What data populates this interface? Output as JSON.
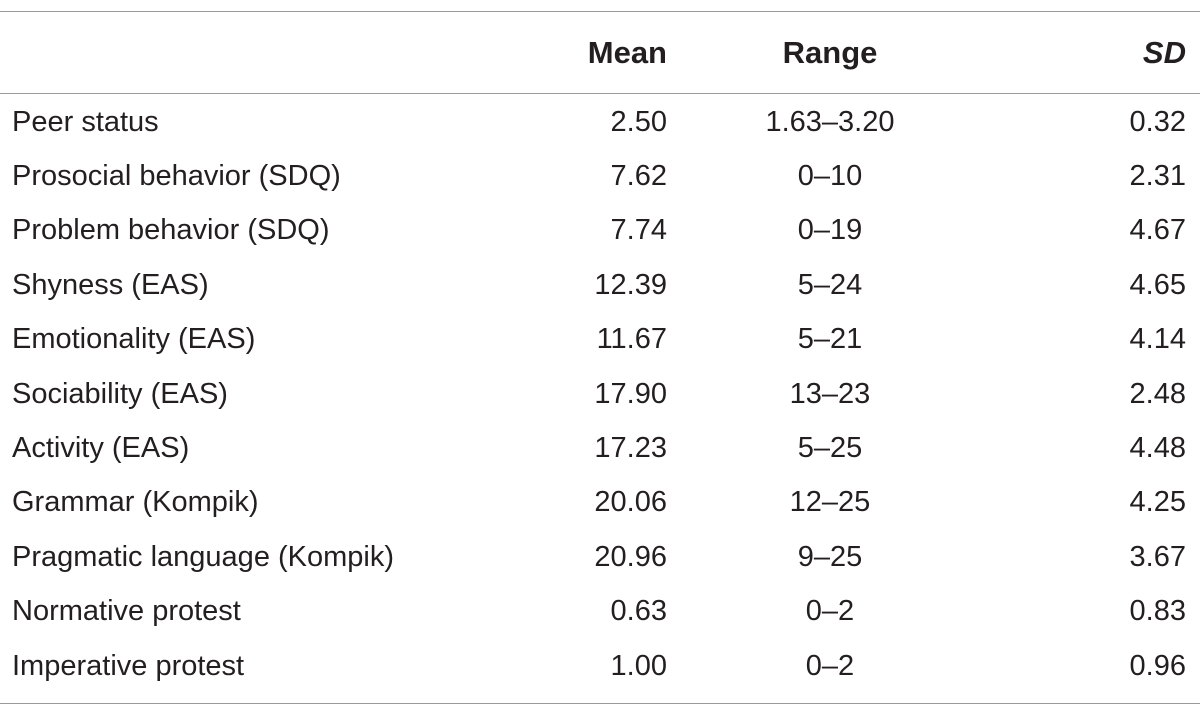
{
  "table": {
    "headers": {
      "label": "",
      "mean": "Mean",
      "range": "Range",
      "sd": "SD"
    },
    "rows": [
      {
        "label": "Peer status",
        "mean": "2.50",
        "range": "1.63–3.20",
        "sd": "0.32"
      },
      {
        "label": "Prosocial behavior (SDQ)",
        "mean": "7.62",
        "range": "0–10",
        "sd": "2.31"
      },
      {
        "label": "Problem behavior (SDQ)",
        "mean": "7.74",
        "range": "0–19",
        "sd": "4.67"
      },
      {
        "label": "Shyness (EAS)",
        "mean": "12.39",
        "range": "5–24",
        "sd": "4.65"
      },
      {
        "label": "Emotionality (EAS)",
        "mean": "11.67",
        "range": "5–21",
        "sd": "4.14"
      },
      {
        "label": "Sociability (EAS)",
        "mean": "17.90",
        "range": "13–23",
        "sd": "2.48"
      },
      {
        "label": "Activity (EAS)",
        "mean": "17.23",
        "range": "5–25",
        "sd": "4.48"
      },
      {
        "label": "Grammar (Kompik)",
        "mean": "20.06",
        "range": "12–25",
        "sd": "4.25"
      },
      {
        "label": "Pragmatic language (Kompik)",
        "mean": "20.96",
        "range": "9–25",
        "sd": "3.67"
      },
      {
        "label": "Normative protest",
        "mean": "0.63",
        "range": "0–2",
        "sd": "0.83"
      },
      {
        "label": "Imperative protest",
        "mean": "1.00",
        "range": "0–2",
        "sd": "0.96"
      }
    ]
  }
}
